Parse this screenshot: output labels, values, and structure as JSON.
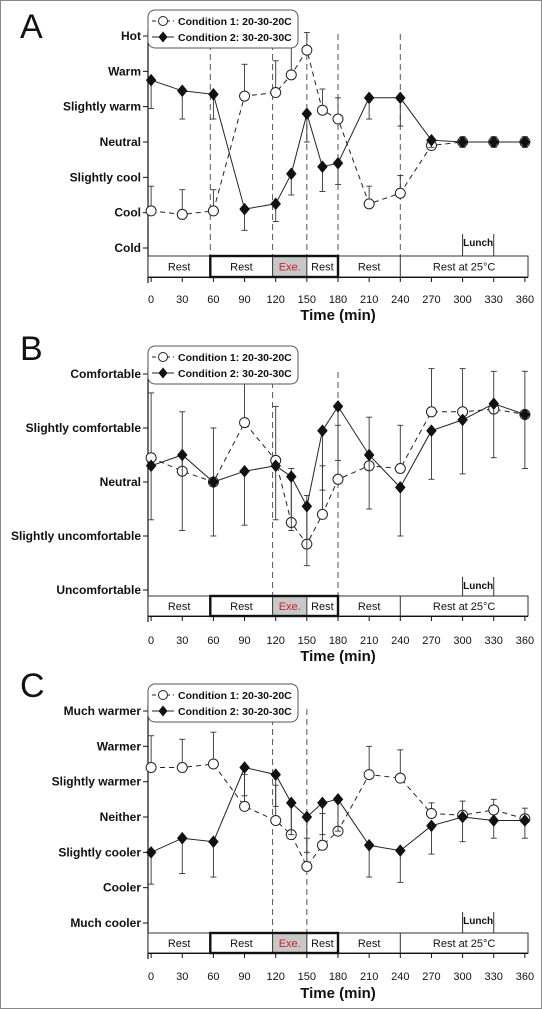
{
  "chart_data": [
    {
      "type": "line",
      "panel_label": "A",
      "xlabel": "Time (min)",
      "x_ticks": [
        0,
        30,
        60,
        90,
        120,
        150,
        180,
        210,
        240,
        270,
        300,
        330,
        360
      ],
      "xlim": [
        -3,
        363
      ],
      "y_categories": [
        "Cold",
        "Cool",
        "Slightly cool",
        "Neutral",
        "Slightly warm",
        "Warm",
        "Hot"
      ],
      "ylim": [
        -3,
        3
      ],
      "vlines": [
        57,
        117,
        150,
        180,
        240
      ],
      "legend": "top-center",
      "series": [
        {
          "name": "Condition 1: 20-30-20C",
          "marker": "open-circle",
          "line": "dashed",
          "x": [
            0,
            30,
            60,
            90,
            120,
            135,
            150,
            165,
            180,
            210,
            240,
            270,
            300,
            330,
            360
          ],
          "y": [
            -1.95,
            -2.05,
            -1.95,
            1.3,
            1.4,
            1.9,
            2.6,
            0.9,
            0.65,
            -1.75,
            -1.45,
            -0.1,
            0.0,
            0.0,
            0.0
          ],
          "err": [
            0.7,
            0.7,
            0.6,
            0.9,
            0.9,
            0.8,
            0.5,
            0.6,
            0.6,
            0.5,
            0.5,
            0.2,
            0.15,
            0.15,
            0.15
          ]
        },
        {
          "name": "Condition 2: 30-20-30C",
          "marker": "filled-diamond",
          "line": "solid",
          "x": [
            0,
            30,
            60,
            90,
            120,
            135,
            150,
            165,
            180,
            210,
            240,
            270,
            300,
            330,
            360
          ],
          "y": [
            1.75,
            1.45,
            1.35,
            -1.9,
            -1.75,
            -0.9,
            0.8,
            -0.7,
            -0.6,
            1.25,
            1.25,
            0.05,
            0.0,
            0.0,
            0.0
          ],
          "err": [
            0.8,
            0.8,
            0.7,
            0.6,
            0.5,
            0.6,
            0.8,
            0.7,
            0.6,
            0.6,
            0.8,
            0.2,
            0.15,
            0.15,
            0.15
          ]
        }
      ]
    },
    {
      "type": "line",
      "panel_label": "B",
      "xlabel": "Time (min)",
      "x_ticks": [
        0,
        30,
        60,
        90,
        120,
        150,
        180,
        210,
        240,
        270,
        300,
        330,
        360
      ],
      "xlim": [
        -3,
        363
      ],
      "y_categories": [
        "Uncomfortable",
        "Slightly uncomfortable",
        "Neutral",
        "Slightly comfortable",
        "Comfortable"
      ],
      "ylim": [
        -2,
        2
      ],
      "vlines": [
        117,
        180
      ],
      "legend": "top-center",
      "series": [
        {
          "name": "Condition 1: 20-30-20C",
          "marker": "open-circle",
          "line": "dashed",
          "x": [
            0,
            30,
            60,
            90,
            120,
            135,
            150,
            165,
            180,
            210,
            240,
            270,
            300,
            330,
            360
          ],
          "y": [
            0.45,
            0.2,
            0.0,
            1.1,
            0.4,
            -0.75,
            -1.15,
            -0.6,
            0.05,
            0.3,
            0.25,
            1.3,
            1.3,
            1.35,
            1.25
          ],
          "err": [
            1.2,
            1.1,
            1.0,
            1.0,
            1.0,
            1.0,
            0.9,
            0.9,
            1.0,
            0.9,
            0.8,
            0.8,
            0.8,
            0.7,
            0.8
          ]
        },
        {
          "name": "Condition 2: 30-20-30C",
          "marker": "filled-diamond",
          "line": "solid",
          "x": [
            0,
            30,
            60,
            90,
            120,
            135,
            150,
            165,
            180,
            210,
            240,
            270,
            300,
            330,
            360
          ],
          "y": [
            0.3,
            0.5,
            0.0,
            0.2,
            0.3,
            0.1,
            -0.45,
            0.95,
            1.4,
            0.5,
            -0.1,
            0.95,
            1.15,
            1.45,
            1.25
          ],
          "err": [
            1.0,
            1.4,
            1.0,
            1.0,
            1.0,
            1.0,
            1.1,
            1.1,
            1.0,
            1.0,
            0.9,
            0.9,
            1.0,
            1.0,
            1.0
          ]
        }
      ]
    },
    {
      "type": "line",
      "panel_label": "C",
      "xlabel": "Time (min)",
      "x_ticks": [
        0,
        30,
        60,
        90,
        120,
        150,
        180,
        210,
        240,
        270,
        300,
        330,
        360
      ],
      "xlim": [
        -3,
        363
      ],
      "y_categories": [
        "Much cooler",
        "Cooler",
        "Slightly cooler",
        "Neither",
        "Slightly warmer",
        "Warmer",
        "Much warmer"
      ],
      "ylim": [
        -3,
        3
      ],
      "vlines": [
        117,
        150
      ],
      "legend": "top-center",
      "series": [
        {
          "name": "Condition 1: 20-30-20C",
          "marker": "open-circle",
          "line": "dashed",
          "x": [
            0,
            30,
            60,
            90,
            120,
            135,
            150,
            165,
            180,
            210,
            240,
            270,
            300,
            330,
            360
          ],
          "y": [
            1.4,
            1.4,
            1.5,
            0.3,
            -0.1,
            -0.5,
            -1.4,
            -0.8,
            -0.4,
            1.2,
            1.1,
            0.1,
            0.05,
            0.2,
            -0.05
          ],
          "err": [
            0.9,
            0.8,
            0.9,
            0.9,
            1.0,
            0.9,
            0.8,
            0.9,
            0.9,
            0.8,
            0.8,
            0.3,
            0.4,
            0.3,
            0.3
          ]
        },
        {
          "name": "Condition 2: 30-20-30C",
          "marker": "filled-diamond",
          "line": "solid",
          "x": [
            0,
            30,
            60,
            90,
            120,
            135,
            150,
            165,
            180,
            210,
            240,
            270,
            300,
            330,
            360
          ],
          "y": [
            -1.0,
            -0.6,
            -0.7,
            1.4,
            1.2,
            0.4,
            0.0,
            0.4,
            0.5,
            -0.8,
            -0.95,
            -0.25,
            0.0,
            -0.1,
            -0.1
          ],
          "err": [
            0.9,
            1.0,
            1.0,
            0.8,
            0.9,
            0.9,
            1.0,
            0.9,
            0.9,
            0.9,
            0.9,
            0.8,
            0.7,
            0.5,
            0.5
          ]
        }
      ]
    }
  ],
  "phase_bar": {
    "labels": [
      "Rest",
      "Rest",
      "Exe.",
      "Rest",
      "Rest",
      "Rest at 25°C"
    ],
    "boundaries": [
      -3,
      57,
      117,
      150,
      180,
      240,
      363
    ],
    "highlight_bounds": [
      57,
      180
    ],
    "exercise_color": "#cc2222",
    "exercise_bg": "#c8c8c8",
    "lunch_label": "Lunch",
    "lunch_span": [
      300,
      330
    ]
  }
}
